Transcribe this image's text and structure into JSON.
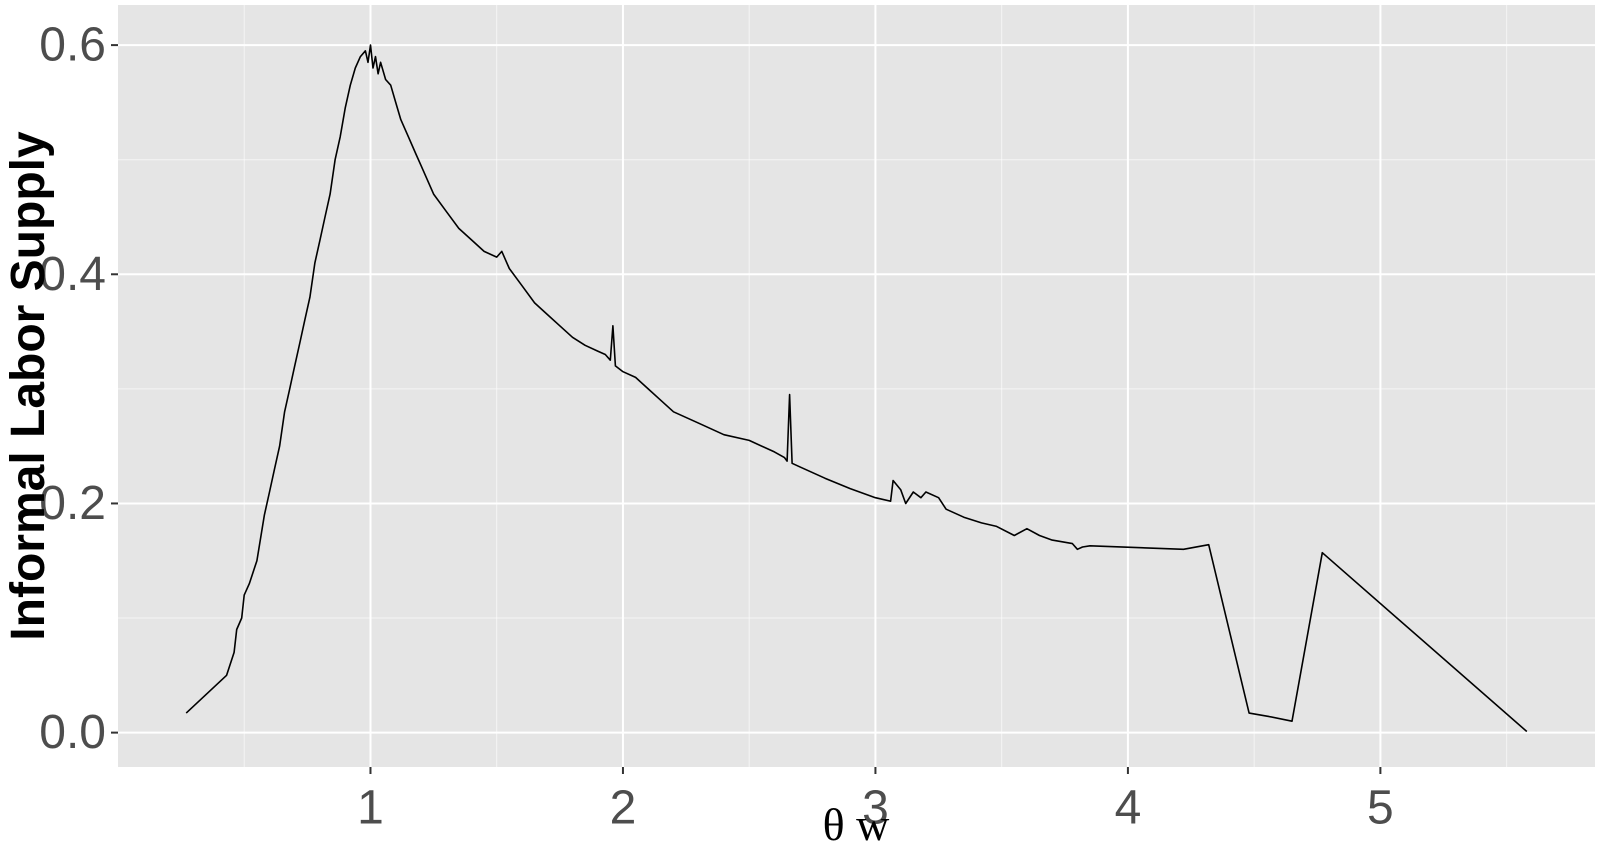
{
  "chart_data": {
    "type": "line",
    "title": "",
    "xlabel": "θ w",
    "ylabel": "Informal Labor Supply",
    "xlim": [
      0.0,
      5.85
    ],
    "ylim": [
      -0.03,
      0.635
    ],
    "xticks": [
      1,
      2,
      3,
      4,
      5
    ],
    "xtick_labels": [
      "1",
      "2",
      "3",
      "4",
      "5"
    ],
    "yticks": [
      0.0,
      0.2,
      0.4,
      0.6
    ],
    "ytick_labels": [
      "0.0",
      "0.2",
      "0.4",
      "0.6"
    ],
    "x_minor_gridlines": [
      0.5,
      1.5,
      2.5,
      3.5,
      4.5,
      5.5
    ],
    "y_minor_gridlines": [
      0.1,
      0.3,
      0.5
    ],
    "grid": true,
    "legend": "none",
    "series": [
      {
        "color": "#000000",
        "x": [
          0.27,
          0.43,
          0.46,
          0.47,
          0.49,
          0.5,
          0.52,
          0.55,
          0.58,
          0.6,
          0.62,
          0.64,
          0.66,
          0.68,
          0.7,
          0.72,
          0.74,
          0.76,
          0.78,
          0.8,
          0.82,
          0.84,
          0.86,
          0.88,
          0.9,
          0.92,
          0.94,
          0.96,
          0.98,
          0.99,
          1.0,
          1.01,
          1.02,
          1.03,
          1.04,
          1.06,
          1.08,
          1.1,
          1.12,
          1.15,
          1.18,
          1.2,
          1.25,
          1.3,
          1.35,
          1.4,
          1.45,
          1.5,
          1.52,
          1.55,
          1.6,
          1.65,
          1.7,
          1.75,
          1.8,
          1.85,
          1.9,
          1.93,
          1.95,
          1.96,
          1.97,
          2.0,
          2.05,
          2.1,
          2.15,
          2.2,
          2.3,
          2.4,
          2.5,
          2.6,
          2.64,
          2.65,
          2.66,
          2.67,
          2.7,
          2.8,
          2.9,
          3.0,
          3.06,
          3.07,
          3.1,
          3.12,
          3.15,
          3.18,
          3.2,
          3.25,
          3.28,
          3.35,
          3.42,
          3.48,
          3.55,
          3.6,
          3.65,
          3.7,
          3.78,
          3.8,
          3.82,
          3.85,
          4.22,
          4.32,
          4.48,
          4.56,
          4.65,
          4.77,
          5.58
        ],
        "y": [
          0.017,
          0.05,
          0.07,
          0.09,
          0.1,
          0.12,
          0.13,
          0.15,
          0.19,
          0.21,
          0.23,
          0.25,
          0.28,
          0.3,
          0.32,
          0.34,
          0.36,
          0.38,
          0.41,
          0.43,
          0.45,
          0.47,
          0.5,
          0.52,
          0.545,
          0.565,
          0.58,
          0.59,
          0.595,
          0.585,
          0.6,
          0.58,
          0.59,
          0.575,
          0.585,
          0.57,
          0.565,
          0.55,
          0.535,
          0.52,
          0.505,
          0.495,
          0.47,
          0.455,
          0.44,
          0.43,
          0.42,
          0.415,
          0.42,
          0.405,
          0.39,
          0.375,
          0.365,
          0.355,
          0.345,
          0.338,
          0.333,
          0.33,
          0.325,
          0.355,
          0.32,
          0.315,
          0.31,
          0.3,
          0.29,
          0.28,
          0.27,
          0.26,
          0.255,
          0.245,
          0.24,
          0.237,
          0.295,
          0.235,
          0.232,
          0.222,
          0.213,
          0.205,
          0.202,
          0.22,
          0.212,
          0.2,
          0.21,
          0.205,
          0.21,
          0.205,
          0.195,
          0.188,
          0.183,
          0.18,
          0.172,
          0.178,
          0.172,
          0.168,
          0.165,
          0.16,
          0.162,
          0.163,
          0.16,
          0.164,
          0.017,
          0.014,
          0.01,
          0.157,
          0.001
        ]
      }
    ]
  },
  "colors": {
    "panel_background": "#e5e5e5",
    "gridline": "#ffffff",
    "line": "#000000"
  }
}
